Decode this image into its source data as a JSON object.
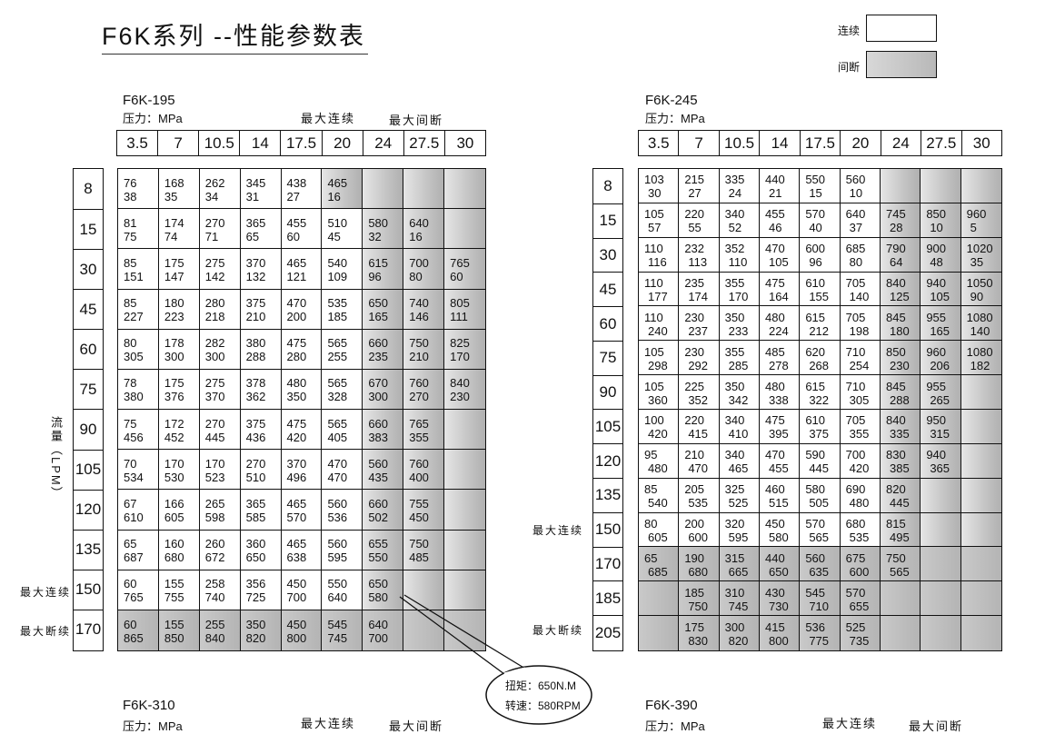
{
  "title": "F6K系列 --性能参数表",
  "legend": {
    "continuous": "连续",
    "intermittent": "间断",
    "colors": {
      "continuous": "#ffffff",
      "intermittent": "#bdbdbd"
    }
  },
  "flow_axis_label": "流量（LPM）",
  "tables": [
    {
      "model": "F6K-195",
      "pressure_label": "压力：MPa",
      "max_continuous": "最大连续",
      "max_intermittent": "最大间断",
      "pressures": [
        "3.5",
        "7",
        "10.5",
        "14",
        "17.5",
        "20",
        "24",
        "27.5",
        "30"
      ],
      "row_note_continuous": "最大连续",
      "row_note_intermittent": "最大断续",
      "rows": [
        {
          "flow": "8",
          "intermittent_from": 5,
          "cells": [
            [
              "76",
              "38"
            ],
            [
              "168",
              "35"
            ],
            [
              "262",
              "34"
            ],
            [
              "345",
              "31"
            ],
            [
              "438",
              "27"
            ],
            [
              "465",
              "16"
            ],
            null,
            null,
            null
          ]
        },
        {
          "flow": "15",
          "intermittent_from": 6,
          "cells": [
            [
              "81",
              "75"
            ],
            [
              "174",
              "74"
            ],
            [
              "270",
              "71"
            ],
            [
              "365",
              "65"
            ],
            [
              "455",
              "60"
            ],
            [
              "510",
              "45"
            ],
            [
              "580",
              "32"
            ],
            [
              "640",
              "16"
            ],
            null
          ]
        },
        {
          "flow": "30",
          "intermittent_from": 6,
          "cells": [
            [
              "85",
              "151"
            ],
            [
              "175",
              "147"
            ],
            [
              "275",
              "142"
            ],
            [
              "370",
              "132"
            ],
            [
              "465",
              "121"
            ],
            [
              "540",
              "109"
            ],
            [
              "615",
              "96"
            ],
            [
              "700",
              "80"
            ],
            [
              "765",
              "60"
            ]
          ]
        },
        {
          "flow": "45",
          "intermittent_from": 6,
          "cells": [
            [
              "85",
              "227"
            ],
            [
              "180",
              "223"
            ],
            [
              "280",
              "218"
            ],
            [
              "375",
              "210"
            ],
            [
              "470",
              "200"
            ],
            [
              "535",
              "185"
            ],
            [
              "650",
              "165"
            ],
            [
              "740",
              "146"
            ],
            [
              "805",
              "111"
            ]
          ]
        },
        {
          "flow": "60",
          "intermittent_from": 6,
          "cells": [
            [
              "80",
              "305"
            ],
            [
              "178",
              "300"
            ],
            [
              "282",
              "300"
            ],
            [
              "380",
              "288"
            ],
            [
              "475",
              "280"
            ],
            [
              "565",
              "255"
            ],
            [
              "660",
              "235"
            ],
            [
              "750",
              "210"
            ],
            [
              "825",
              "170"
            ]
          ]
        },
        {
          "flow": "75",
          "intermittent_from": 6,
          "cells": [
            [
              "78",
              "380"
            ],
            [
              "175",
              "376"
            ],
            [
              "275",
              "370"
            ],
            [
              "378",
              "362"
            ],
            [
              "480",
              "350"
            ],
            [
              "565",
              "328"
            ],
            [
              "670",
              "300"
            ],
            [
              "760",
              "270"
            ],
            [
              "840",
              "230"
            ]
          ]
        },
        {
          "flow": "90",
          "intermittent_from": 6,
          "cells": [
            [
              "75",
              "456"
            ],
            [
              "172",
              "452"
            ],
            [
              "270",
              "445"
            ],
            [
              "375",
              "436"
            ],
            [
              "475",
              "420"
            ],
            [
              "565",
              "405"
            ],
            [
              "660",
              "383"
            ],
            [
              "765",
              "355"
            ],
            null
          ]
        },
        {
          "flow": "105",
          "intermittent_from": 6,
          "cells": [
            [
              "70",
              "534"
            ],
            [
              "170",
              "530"
            ],
            [
              "170",
              "523"
            ],
            [
              "270",
              "510"
            ],
            [
              "370",
              "496"
            ],
            [
              "470",
              "470"
            ],
            [
              "560",
              "435"
            ],
            [
              "760",
              "400"
            ],
            null
          ]
        },
        {
          "flow": "120",
          "intermittent_from": 6,
          "cells": [
            [
              "67",
              "610"
            ],
            [
              "166",
              "605"
            ],
            [
              "265",
              "598"
            ],
            [
              "365",
              "585"
            ],
            [
              "465",
              "570"
            ],
            [
              "560",
              "536"
            ],
            [
              "660",
              "502"
            ],
            [
              "755",
              "450"
            ],
            null
          ]
        },
        {
          "flow": "135",
          "intermittent_from": 6,
          "cells": [
            [
              "65",
              "687"
            ],
            [
              "160",
              "680"
            ],
            [
              "260",
              "672"
            ],
            [
              "360",
              "650"
            ],
            [
              "465",
              "638"
            ],
            [
              "560",
              "595"
            ],
            [
              "655",
              "550"
            ],
            [
              "750",
              "485"
            ],
            null
          ]
        },
        {
          "flow": "150",
          "intermittent_from": 6,
          "cells": [
            [
              "60",
              "765"
            ],
            [
              "155",
              "755"
            ],
            [
              "258",
              "740"
            ],
            [
              "356",
              "725"
            ],
            [
              "450",
              "700"
            ],
            [
              "550",
              "640"
            ],
            [
              "650",
              "580"
            ],
            null,
            null
          ]
        },
        {
          "flow": "170",
          "intermittent_from": 0,
          "cells": [
            [
              "60",
              "865"
            ],
            [
              "155",
              "850"
            ],
            [
              "255",
              "840"
            ],
            [
              "350",
              "820"
            ],
            [
              "450",
              "800"
            ],
            [
              "545",
              "745"
            ],
            [
              "640",
              "700"
            ],
            null,
            null
          ]
        }
      ]
    },
    {
      "model": "F6K-245",
      "pressure_label": "压力：MPa",
      "pressures": [
        "3.5",
        "7",
        "10.5",
        "14",
        "17.5",
        "20",
        "24",
        "27.5",
        "30"
      ],
      "row_note_continuous": "最大连续",
      "row_note_intermittent": "最大断续",
      "rows": [
        {
          "flow": "8",
          "intermittent_from": 6,
          "cells": [
            [
              "103",
              "30"
            ],
            [
              "215",
              "27"
            ],
            [
              "335",
              "24"
            ],
            [
              "440",
              "21"
            ],
            [
              "550",
              "15"
            ],
            [
              "560",
              "10"
            ],
            null,
            null,
            null
          ]
        },
        {
          "flow": "15",
          "intermittent_from": 6,
          "cells": [
            [
              "105",
              "57"
            ],
            [
              "220",
              "55"
            ],
            [
              "340",
              "52"
            ],
            [
              "455",
              "46"
            ],
            [
              "570",
              "40"
            ],
            [
              "640",
              "37"
            ],
            [
              "745",
              "28"
            ],
            [
              "850",
              "10"
            ],
            [
              "960",
              "5"
            ]
          ]
        },
        {
          "flow": "30",
          "intermittent_from": 6,
          "cells": [
            [
              "110",
              "116"
            ],
            [
              "232",
              "113"
            ],
            [
              "352",
              "110"
            ],
            [
              "470",
              "105"
            ],
            [
              "600",
              "96"
            ],
            [
              "685",
              "80"
            ],
            [
              "790",
              "64"
            ],
            [
              "900",
              "48"
            ],
            [
              "1020",
              "35"
            ]
          ]
        },
        {
          "flow": "45",
          "intermittent_from": 6,
          "cells": [
            [
              "110",
              "177"
            ],
            [
              "235",
              "174"
            ],
            [
              "355",
              "170"
            ],
            [
              "475",
              "164"
            ],
            [
              "610",
              "155"
            ],
            [
              "705",
              "140"
            ],
            [
              "840",
              "125"
            ],
            [
              "940",
              "105"
            ],
            [
              "1050",
              "90"
            ]
          ]
        },
        {
          "flow": "60",
          "intermittent_from": 6,
          "cells": [
            [
              "110",
              "240"
            ],
            [
              "230",
              "237"
            ],
            [
              "350",
              "233"
            ],
            [
              "480",
              "224"
            ],
            [
              "615",
              "212"
            ],
            [
              "705",
              "198"
            ],
            [
              "845",
              "180"
            ],
            [
              "955",
              "165"
            ],
            [
              "1080",
              "140"
            ]
          ]
        },
        {
          "flow": "75",
          "intermittent_from": 6,
          "cells": [
            [
              "105",
              "298"
            ],
            [
              "230",
              "292"
            ],
            [
              "355",
              "285"
            ],
            [
              "485",
              "278"
            ],
            [
              "620",
              "268"
            ],
            [
              "710",
              "254"
            ],
            [
              "850",
              "230"
            ],
            [
              "960",
              "206"
            ],
            [
              "1080",
              "182"
            ]
          ]
        },
        {
          "flow": "90",
          "intermittent_from": 6,
          "cells": [
            [
              "105",
              "360"
            ],
            [
              "225",
              "352"
            ],
            [
              "350",
              "342"
            ],
            [
              "480",
              "338"
            ],
            [
              "615",
              "322"
            ],
            [
              "710",
              "305"
            ],
            [
              "845",
              "288"
            ],
            [
              "955",
              "265"
            ],
            null
          ]
        },
        {
          "flow": "105",
          "intermittent_from": 6,
          "cells": [
            [
              "100",
              "420"
            ],
            [
              "220",
              "415"
            ],
            [
              "340",
              "410"
            ],
            [
              "475",
              "395"
            ],
            [
              "610",
              "375"
            ],
            [
              "705",
              "355"
            ],
            [
              "840",
              "335"
            ],
            [
              "950",
              "315"
            ],
            null
          ]
        },
        {
          "flow": "120",
          "intermittent_from": 6,
          "cells": [
            [
              "95",
              "480"
            ],
            [
              "210",
              "470"
            ],
            [
              "340",
              "465"
            ],
            [
              "470",
              "455"
            ],
            [
              "590",
              "445"
            ],
            [
              "700",
              "420"
            ],
            [
              "830",
              "385"
            ],
            [
              "940",
              "365"
            ],
            null
          ]
        },
        {
          "flow": "135",
          "intermittent_from": 6,
          "cells": [
            [
              "85",
              "540"
            ],
            [
              "205",
              "535"
            ],
            [
              "325",
              "525"
            ],
            [
              "460",
              "515"
            ],
            [
              "580",
              "505"
            ],
            [
              "690",
              "480"
            ],
            [
              "820",
              "445"
            ],
            null,
            null
          ]
        },
        {
          "flow": "150",
          "intermittent_from": 6,
          "cells": [
            [
              "80",
              "605"
            ],
            [
              "200",
              "600"
            ],
            [
              "320",
              "595"
            ],
            [
              "450",
              "580"
            ],
            [
              "570",
              "565"
            ],
            [
              "680",
              "535"
            ],
            [
              "815",
              "495"
            ],
            null,
            null
          ]
        },
        {
          "flow": "170",
          "intermittent_from": 0,
          "cells": [
            [
              "65",
              "685"
            ],
            [
              "190",
              "680"
            ],
            [
              "315",
              "665"
            ],
            [
              "440",
              "650"
            ],
            [
              "560",
              "635"
            ],
            [
              "675",
              "600"
            ],
            [
              "750",
              "565"
            ],
            null,
            null
          ]
        },
        {
          "flow": "185",
          "intermittent_from": 0,
          "cells": [
            null,
            [
              "185",
              "750"
            ],
            [
              "310",
              "745"
            ],
            [
              "430",
              "730"
            ],
            [
              "545",
              "710"
            ],
            [
              "570",
              "655"
            ],
            null,
            null,
            null
          ]
        },
        {
          "flow": "205",
          "intermittent_from": 0,
          "cells": [
            null,
            [
              "175",
              "830"
            ],
            [
              "300",
              "820"
            ],
            [
              "415",
              "800"
            ],
            [
              "536",
              "775"
            ],
            [
              "525",
              "735"
            ],
            null,
            null,
            null
          ]
        }
      ]
    }
  ],
  "callout": {
    "torque": "扭矩：650N.M",
    "speed": "转速：580RPM"
  },
  "next_tables": [
    {
      "model": "F6K-310",
      "pressure_label": "压力：MPa",
      "max_continuous": "最大连续",
      "max_intermittent": "最大间断"
    },
    {
      "model": "F6K-390",
      "pressure_label": "压力：MPa",
      "max_continuous": "最大连续",
      "max_intermittent": "最大间断"
    }
  ]
}
